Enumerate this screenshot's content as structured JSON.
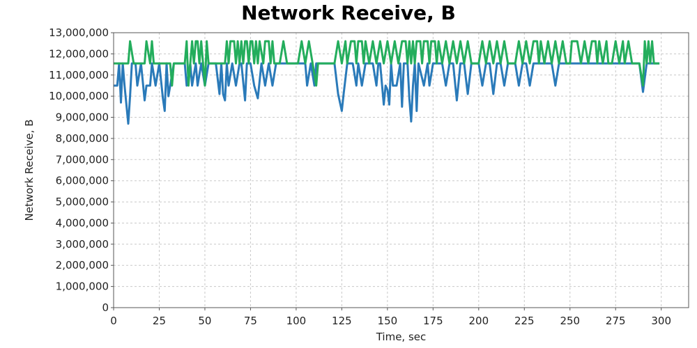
{
  "chart_data": {
    "type": "line",
    "title": "Network Receive, B",
    "xlabel": "Time, sec",
    "ylabel": "Network Receive, B",
    "xlim": [
      0,
      315
    ],
    "ylim": [
      0,
      13000000
    ],
    "xticks": [
      0,
      25,
      50,
      75,
      100,
      125,
      150,
      175,
      200,
      225,
      250,
      275,
      300
    ],
    "yticks": [
      0,
      1000000,
      2000000,
      3000000,
      4000000,
      5000000,
      6000000,
      7000000,
      8000000,
      9000000,
      10000000,
      11000000,
      12000000,
      13000000
    ],
    "xtick_labels": [
      "0",
      "25",
      "50",
      "75",
      "100",
      "125",
      "150",
      "175",
      "200",
      "225",
      "250",
      "275",
      "300"
    ],
    "ytick_labels": [
      "0",
      "1,000,000",
      "2,000,000",
      "3,000,000",
      "4,000,000",
      "5,000,000",
      "6,000,000",
      "7,000,000",
      "8,000,000",
      "9,000,000",
      "10,000,000",
      "11,000,000",
      "12,000,000",
      "13,000,000"
    ],
    "grid": true,
    "legend": "none",
    "series": [
      {
        "color": "#2a7ab9",
        "points": [
          [
            0,
            10500000
          ],
          [
            2,
            10500000
          ],
          [
            3,
            11550000
          ],
          [
            4,
            9700000
          ],
          [
            5,
            11550000
          ],
          [
            6,
            10500000
          ],
          [
            8,
            8700000
          ],
          [
            9,
            10000000
          ],
          [
            10,
            11550000
          ],
          [
            12,
            11550000
          ],
          [
            13,
            10500000
          ],
          [
            15,
            11550000
          ],
          [
            17,
            9800000
          ],
          [
            18,
            10500000
          ],
          [
            20,
            10500000
          ],
          [
            21,
            11550000
          ],
          [
            23,
            10500000
          ],
          [
            25,
            11550000
          ],
          [
            27,
            9900000
          ],
          [
            28,
            9300000
          ],
          [
            29,
            11550000
          ],
          [
            30,
            10000000
          ],
          [
            31,
            10500000
          ],
          [
            33,
            11550000
          ],
          [
            39,
            11550000
          ],
          [
            40,
            10500000
          ],
          [
            42,
            11550000
          ],
          [
            43,
            10500000
          ],
          [
            45,
            11550000
          ],
          [
            46,
            10500000
          ],
          [
            48,
            11550000
          ],
          [
            50,
            10500000
          ],
          [
            52,
            11550000
          ],
          [
            56,
            11550000
          ],
          [
            58,
            10100000
          ],
          [
            59,
            11550000
          ],
          [
            60,
            10100000
          ],
          [
            61,
            9800000
          ],
          [
            62,
            11550000
          ],
          [
            63,
            10500000
          ],
          [
            65,
            11550000
          ],
          [
            67,
            10500000
          ],
          [
            69,
            11550000
          ],
          [
            70,
            11550000
          ],
          [
            72,
            9800000
          ],
          [
            73,
            11550000
          ],
          [
            75,
            11550000
          ],
          [
            77,
            10500000
          ],
          [
            79,
            9900000
          ],
          [
            81,
            11550000
          ],
          [
            83,
            10500000
          ],
          [
            85,
            11550000
          ],
          [
            87,
            10500000
          ],
          [
            89,
            11550000
          ],
          [
            104,
            11550000
          ],
          [
            105,
            11550000
          ],
          [
            106,
            10500000
          ],
          [
            108,
            11550000
          ],
          [
            110,
            10500000
          ],
          [
            111,
            11550000
          ],
          [
            121,
            11550000
          ],
          [
            123,
            10100000
          ],
          [
            125,
            9300000
          ],
          [
            126,
            10100000
          ],
          [
            128,
            11550000
          ],
          [
            131,
            11550000
          ],
          [
            133,
            10500000
          ],
          [
            134,
            11550000
          ],
          [
            136,
            10500000
          ],
          [
            138,
            11550000
          ],
          [
            142,
            11550000
          ],
          [
            144,
            10500000
          ],
          [
            145,
            11550000
          ],
          [
            146,
            11550000
          ],
          [
            148,
            9600000
          ],
          [
            149,
            10500000
          ],
          [
            150,
            10300000
          ],
          [
            151,
            9600000
          ],
          [
            152,
            11550000
          ],
          [
            153,
            10500000
          ],
          [
            155,
            10500000
          ],
          [
            157,
            11550000
          ],
          [
            158,
            9500000
          ],
          [
            159,
            11550000
          ],
          [
            161,
            11550000
          ],
          [
            162,
            9900000
          ],
          [
            163,
            8800000
          ],
          [
            164,
            10500000
          ],
          [
            165,
            11550000
          ],
          [
            166,
            9300000
          ],
          [
            167,
            11550000
          ],
          [
            170,
            10500000
          ],
          [
            172,
            11550000
          ],
          [
            173,
            10500000
          ],
          [
            175,
            11550000
          ],
          [
            180,
            11550000
          ],
          [
            182,
            10500000
          ],
          [
            184,
            11550000
          ],
          [
            186,
            11550000
          ],
          [
            188,
            9800000
          ],
          [
            190,
            11550000
          ],
          [
            192,
            11550000
          ],
          [
            194,
            10100000
          ],
          [
            196,
            11550000
          ],
          [
            200,
            11550000
          ],
          [
            202,
            10500000
          ],
          [
            204,
            11550000
          ],
          [
            206,
            11550000
          ],
          [
            208,
            10100000
          ],
          [
            210,
            11550000
          ],
          [
            212,
            11550000
          ],
          [
            214,
            10500000
          ],
          [
            216,
            11550000
          ],
          [
            220,
            11550000
          ],
          [
            222,
            10500000
          ],
          [
            224,
            11550000
          ],
          [
            226,
            11550000
          ],
          [
            228,
            10500000
          ],
          [
            230,
            11550000
          ],
          [
            240,
            11550000
          ],
          [
            242,
            10500000
          ],
          [
            244,
            11550000
          ],
          [
            246,
            11550000
          ],
          [
            288,
            11550000
          ],
          [
            290,
            10200000
          ],
          [
            292,
            11550000
          ],
          [
            299,
            11550000
          ]
        ]
      },
      {
        "color": "#23ad5c",
        "points": [
          [
            0,
            11550000
          ],
          [
            8,
            11550000
          ],
          [
            9,
            12600000
          ],
          [
            11,
            11550000
          ],
          [
            17,
            11550000
          ],
          [
            18,
            12600000
          ],
          [
            20,
            11550000
          ],
          [
            21,
            12600000
          ],
          [
            22,
            11550000
          ],
          [
            31,
            11550000
          ],
          [
            32,
            10500000
          ],
          [
            33,
            11550000
          ],
          [
            39,
            11550000
          ],
          [
            40,
            12600000
          ],
          [
            41,
            10500000
          ],
          [
            42,
            11550000
          ],
          [
            43,
            12600000
          ],
          [
            44,
            11550000
          ],
          [
            45,
            12600000
          ],
          [
            46,
            12600000
          ],
          [
            47,
            11550000
          ],
          [
            48,
            12600000
          ],
          [
            49,
            11550000
          ],
          [
            50,
            10500000
          ],
          [
            51,
            12600000
          ],
          [
            52,
            11550000
          ],
          [
            61,
            11550000
          ],
          [
            62,
            12600000
          ],
          [
            63,
            11550000
          ],
          [
            64,
            12600000
          ],
          [
            66,
            12600000
          ],
          [
            67,
            11550000
          ],
          [
            68,
            12600000
          ],
          [
            69,
            11550000
          ],
          [
            70,
            12600000
          ],
          [
            71,
            11550000
          ],
          [
            72,
            12600000
          ],
          [
            73,
            12600000
          ],
          [
            74,
            11550000
          ],
          [
            75,
            12600000
          ],
          [
            76,
            12600000
          ],
          [
            77,
            11550000
          ],
          [
            78,
            12600000
          ],
          [
            79,
            11550000
          ],
          [
            80,
            12600000
          ],
          [
            82,
            11550000
          ],
          [
            83,
            12600000
          ],
          [
            85,
            12600000
          ],
          [
            86,
            11550000
          ],
          [
            87,
            12600000
          ],
          [
            88,
            11550000
          ],
          [
            91,
            11550000
          ],
          [
            93,
            12600000
          ],
          [
            95,
            11550000
          ],
          [
            101,
            11550000
          ],
          [
            103,
            12600000
          ],
          [
            105,
            11550000
          ],
          [
            107,
            12600000
          ],
          [
            109,
            11550000
          ],
          [
            111,
            10500000
          ],
          [
            112,
            11550000
          ],
          [
            121,
            11550000
          ],
          [
            123,
            12600000
          ],
          [
            125,
            11550000
          ],
          [
            127,
            12600000
          ],
          [
            128,
            11550000
          ],
          [
            130,
            12600000
          ],
          [
            132,
            12600000
          ],
          [
            133,
            11550000
          ],
          [
            134,
            12600000
          ],
          [
            136,
            12600000
          ],
          [
            137,
            11550000
          ],
          [
            138,
            12600000
          ],
          [
            140,
            11550000
          ],
          [
            142,
            12600000
          ],
          [
            144,
            11550000
          ],
          [
            146,
            12600000
          ],
          [
            148,
            11550000
          ],
          [
            150,
            12600000
          ],
          [
            152,
            11550000
          ],
          [
            154,
            12600000
          ],
          [
            156,
            11550000
          ],
          [
            158,
            12600000
          ],
          [
            160,
            12600000
          ],
          [
            161,
            11550000
          ],
          [
            162,
            12600000
          ],
          [
            163,
            11550000
          ],
          [
            164,
            12600000
          ],
          [
            165,
            11550000
          ],
          [
            166,
            12600000
          ],
          [
            168,
            12600000
          ],
          [
            169,
            11550000
          ],
          [
            170,
            12600000
          ],
          [
            172,
            12600000
          ],
          [
            173,
            11550000
          ],
          [
            174,
            12600000
          ],
          [
            176,
            12600000
          ],
          [
            177,
            11550000
          ],
          [
            178,
            12600000
          ],
          [
            180,
            11550000
          ],
          [
            182,
            12600000
          ],
          [
            184,
            11550000
          ],
          [
            186,
            12600000
          ],
          [
            188,
            11550000
          ],
          [
            190,
            12600000
          ],
          [
            192,
            11550000
          ],
          [
            194,
            12600000
          ],
          [
            196,
            11550000
          ],
          [
            200,
            11550000
          ],
          [
            202,
            12600000
          ],
          [
            204,
            11550000
          ],
          [
            206,
            12600000
          ],
          [
            208,
            11550000
          ],
          [
            210,
            12600000
          ],
          [
            212,
            11550000
          ],
          [
            214,
            12600000
          ],
          [
            216,
            11550000
          ],
          [
            220,
            11550000
          ],
          [
            222,
            12600000
          ],
          [
            224,
            11550000
          ],
          [
            226,
            12600000
          ],
          [
            228,
            11550000
          ],
          [
            230,
            12600000
          ],
          [
            232,
            12600000
          ],
          [
            233,
            11550000
          ],
          [
            234,
            12600000
          ],
          [
            236,
            11550000
          ],
          [
            238,
            12600000
          ],
          [
            240,
            11550000
          ],
          [
            242,
            12600000
          ],
          [
            244,
            11550000
          ],
          [
            246,
            12600000
          ],
          [
            248,
            11550000
          ],
          [
            250,
            11550000
          ],
          [
            251,
            12600000
          ],
          [
            254,
            12600000
          ],
          [
            256,
            11550000
          ],
          [
            258,
            12600000
          ],
          [
            260,
            11550000
          ],
          [
            262,
            12600000
          ],
          [
            264,
            12600000
          ],
          [
            265,
            11550000
          ],
          [
            266,
            12600000
          ],
          [
            268,
            11550000
          ],
          [
            270,
            12600000
          ],
          [
            271,
            11550000
          ],
          [
            273,
            11550000
          ],
          [
            275,
            12600000
          ],
          [
            277,
            11550000
          ],
          [
            279,
            12600000
          ],
          [
            280,
            11550000
          ],
          [
            282,
            12600000
          ],
          [
            284,
            11550000
          ],
          [
            288,
            11550000
          ],
          [
            290,
            10500000
          ],
          [
            291,
            12600000
          ],
          [
            292,
            11550000
          ],
          [
            293,
            12600000
          ],
          [
            294,
            11550000
          ],
          [
            295,
            12600000
          ],
          [
            296,
            11550000
          ],
          [
            299,
            11550000
          ]
        ]
      }
    ]
  }
}
